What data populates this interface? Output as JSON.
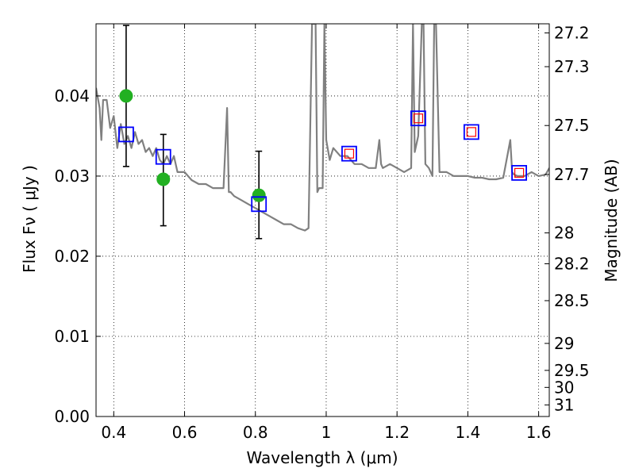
{
  "chart_data": {
    "type": "scatter",
    "title": "",
    "xlabel": "Wavelength  λ (μm)",
    "ylabel": "Flux  Fν  ( μJy )",
    "y2label": "Magnitude (AB)",
    "xlim": [
      0.35,
      1.63
    ],
    "ylim": [
      0.0,
      0.049
    ],
    "grid": true,
    "x_ticks": [
      0.4,
      0.6,
      0.8,
      1.0,
      1.2,
      1.4,
      1.6
    ],
    "x_tick_labels": [
      "0.4",
      "0.6",
      "0.8",
      "1",
      "1.2",
      "1.4",
      "1.6"
    ],
    "y_ticks": [
      0.0,
      0.01,
      0.02,
      0.03,
      0.04
    ],
    "y_tick_labels": [
      "0.00",
      "0.01",
      "0.02",
      "0.03",
      "0.04"
    ],
    "mag_ticks": [
      27.2,
      27.3,
      27.5,
      27.7,
      28,
      28.2,
      28.5,
      29,
      29.5,
      30,
      31
    ],
    "mag_tick_labels": [
      "27.2",
      "27.3",
      "27.5",
      "27.7",
      "28",
      "28.2",
      "28.5",
      "29",
      "29.5",
      "30",
      "31"
    ],
    "series": [
      {
        "name": "Template spectrum",
        "kind": "line",
        "color": "#808080",
        "x": [
          0.35,
          0.36,
          0.365,
          0.37,
          0.38,
          0.39,
          0.4,
          0.41,
          0.42,
          0.43,
          0.44,
          0.45,
          0.46,
          0.47,
          0.48,
          0.49,
          0.5,
          0.51,
          0.52,
          0.53,
          0.54,
          0.55,
          0.56,
          0.57,
          0.58,
          0.6,
          0.62,
          0.64,
          0.66,
          0.68,
          0.7,
          0.71,
          0.72,
          0.725,
          0.73,
          0.74,
          0.76,
          0.78,
          0.8,
          0.82,
          0.84,
          0.86,
          0.88,
          0.9,
          0.92,
          0.94,
          0.95,
          0.96,
          0.965,
          0.97,
          0.975,
          0.98,
          0.99,
          0.995,
          1.0,
          1.01,
          1.02,
          1.04,
          1.06,
          1.08,
          1.1,
          1.12,
          1.14,
          1.15,
          1.155,
          1.16,
          1.18,
          1.2,
          1.22,
          1.24,
          1.245,
          1.25,
          1.26,
          1.27,
          1.275,
          1.28,
          1.29,
          1.3,
          1.305,
          1.31,
          1.32,
          1.34,
          1.36,
          1.38,
          1.4,
          1.42,
          1.44,
          1.46,
          1.48,
          1.5,
          1.52,
          1.525,
          1.53,
          1.54,
          1.56,
          1.58,
          1.6,
          1.62,
          1.63
        ],
        "y": [
          0.041,
          0.0385,
          0.0345,
          0.0395,
          0.0395,
          0.036,
          0.0375,
          0.0335,
          0.0365,
          0.034,
          0.035,
          0.0335,
          0.0355,
          0.034,
          0.0345,
          0.033,
          0.0335,
          0.0325,
          0.0335,
          0.032,
          0.0315,
          0.0325,
          0.0315,
          0.0325,
          0.0305,
          0.0305,
          0.0295,
          0.029,
          0.029,
          0.0285,
          0.0285,
          0.0285,
          0.0385,
          0.028,
          0.028,
          0.0275,
          0.027,
          0.0265,
          0.026,
          0.0255,
          0.025,
          0.0245,
          0.024,
          0.024,
          0.0235,
          0.0232,
          0.0235,
          0.049,
          0.049,
          0.049,
          0.028,
          0.0285,
          0.0285,
          0.049,
          0.0345,
          0.032,
          0.0335,
          0.0325,
          0.0325,
          0.0315,
          0.0315,
          0.031,
          0.031,
          0.0345,
          0.0315,
          0.031,
          0.0315,
          0.031,
          0.0305,
          0.031,
          0.049,
          0.033,
          0.035,
          0.049,
          0.049,
          0.0315,
          0.031,
          0.03,
          0.049,
          0.049,
          0.0305,
          0.0305,
          0.03,
          0.03,
          0.03,
          0.0298,
          0.0298,
          0.0296,
          0.0296,
          0.0298,
          0.0345,
          0.0305,
          0.0302,
          0.03,
          0.03,
          0.0305,
          0.03,
          0.0302,
          0.031
        ]
      },
      {
        "name": "Model photometry",
        "kind": "open-square",
        "color": "#0000ff",
        "x": [
          0.435,
          0.54,
          0.81,
          1.065,
          1.26,
          1.41,
          1.545
        ],
        "y": [
          0.0352,
          0.0324,
          0.0265,
          0.0328,
          0.0372,
          0.0355,
          0.0304
        ]
      },
      {
        "name": "Observed flux (red squares)",
        "kind": "small-open-square",
        "color": "#ff0000",
        "x": [
          1.065,
          1.26,
          1.41,
          1.545
        ],
        "y": [
          0.0328,
          0.0372,
          0.0355,
          0.0304
        ]
      },
      {
        "name": "Observed flux (green circles)",
        "kind": "filled-circle",
        "color": "#22b022",
        "x": [
          0.435,
          0.54,
          0.81
        ],
        "y": [
          0.04,
          0.0296,
          0.0276
        ]
      },
      {
        "name": "Error bars",
        "kind": "errorbar",
        "color": "#000000",
        "x": [
          0.435,
          0.54,
          0.81
        ],
        "ylow": [
          0.0312,
          0.0238,
          0.0222
        ],
        "yhigh": [
          0.0488,
          0.0352,
          0.0331
        ]
      }
    ]
  }
}
